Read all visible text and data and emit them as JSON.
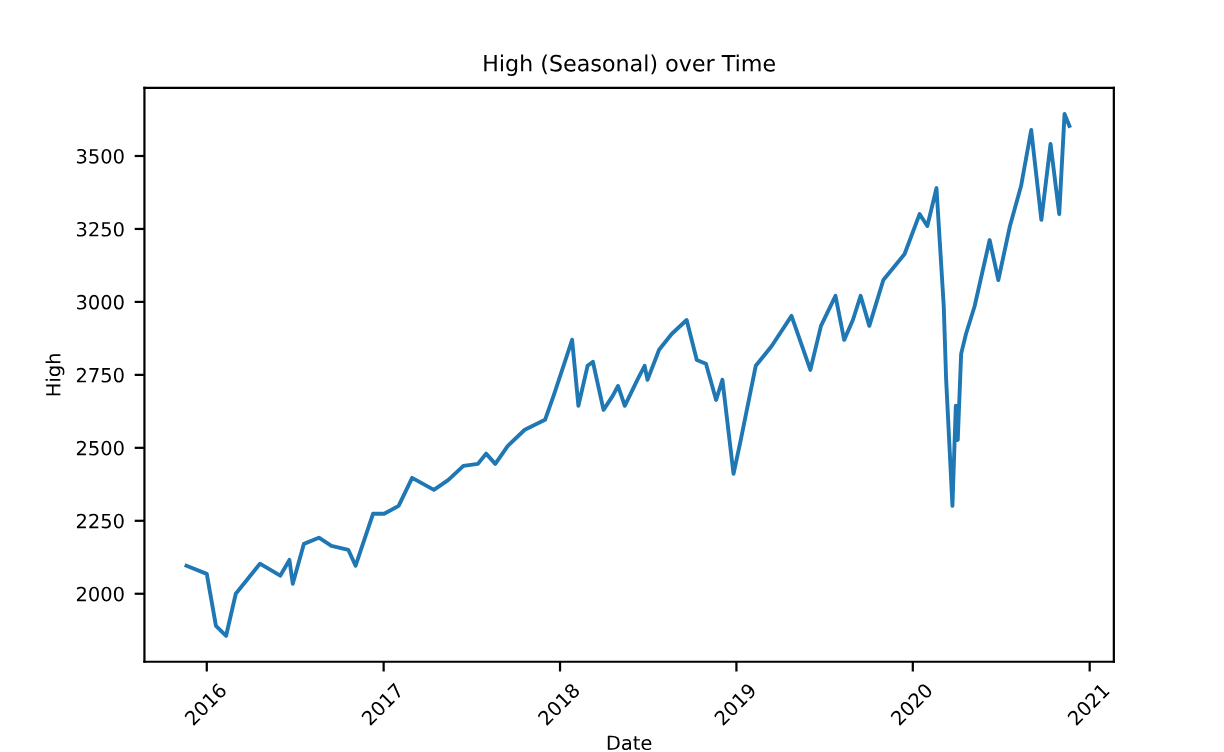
{
  "chart_data": {
    "type": "line",
    "title": "High (Seasonal) over Time",
    "xlabel": "Date",
    "ylabel": "High",
    "x": [
      "2015-11-20",
      "2016-01-01",
      "2016-01-20",
      "2016-02-10",
      "2016-03-01",
      "2016-04-20",
      "2016-06-01",
      "2016-06-20",
      "2016-06-27",
      "2016-07-20",
      "2016-08-20",
      "2016-09-15",
      "2016-10-20",
      "2016-11-04",
      "2016-12-10",
      "2017-01-02",
      "2017-02-01",
      "2017-03-01",
      "2017-04-15",
      "2017-05-15",
      "2017-06-15",
      "2017-07-15",
      "2017-08-01",
      "2017-08-20",
      "2017-09-15",
      "2017-10-20",
      "2017-12-01",
      "2017-12-20",
      "2018-01-26",
      "2018-02-08",
      "2018-02-27",
      "2018-03-10",
      "2018-04-01",
      "2018-04-20",
      "2018-05-01",
      "2018-05-15",
      "2018-06-10",
      "2018-06-25",
      "2018-07-01",
      "2018-07-25",
      "2018-08-20",
      "2018-09-20",
      "2018-10-11",
      "2018-10-30",
      "2018-11-20",
      "2018-12-03",
      "2018-12-26",
      "2019-01-10",
      "2019-02-10",
      "2019-03-15",
      "2019-04-25",
      "2019-06-03",
      "2019-06-25",
      "2019-07-25",
      "2019-08-12",
      "2019-08-30",
      "2019-09-15",
      "2019-10-03",
      "2019-11-01",
      "2019-12-15",
      "2020-01-15",
      "2020-01-31",
      "2020-02-19",
      "2020-03-05",
      "2020-03-10",
      "2020-03-23",
      "2020-03-30",
      "2020-04-03",
      "2020-04-10",
      "2020-04-20",
      "2020-05-08",
      "2020-06-08",
      "2020-06-26",
      "2020-07-20",
      "2020-08-12",
      "2020-09-02",
      "2020-09-23",
      "2020-10-12",
      "2020-10-30",
      "2020-11-10",
      "2020-11-20"
    ],
    "series": [
      {
        "color": "#1f77b4",
        "values": [
          2096,
          2068,
          1890,
          1856,
          2000,
          2103,
          2062,
          2116,
          2034,
          2171,
          2192,
          2164,
          2150,
          2096,
          2274,
          2274,
          2301,
          2397,
          2356,
          2390,
          2438,
          2445,
          2480,
          2445,
          2507,
          2562,
          2596,
          2685,
          2870,
          2644,
          2781,
          2795,
          2630,
          2678,
          2712,
          2644,
          2733,
          2781,
          2733,
          2836,
          2890,
          2938,
          2801,
          2788,
          2664,
          2733,
          2411,
          2527,
          2781,
          2849,
          2952,
          2767,
          2918,
          3021,
          2870,
          2938,
          3021,
          2918,
          3075,
          3164,
          3301,
          3260,
          3390,
          2986,
          2733,
          2301,
          2644,
          2527,
          2822,
          2890,
          2986,
          3212,
          3075,
          3260,
          3397,
          3589,
          3281,
          3541,
          3301,
          3644,
          3603
        ]
      }
    ],
    "xlim": [
      "2015-08-25",
      "2021-02-20"
    ],
    "xticks": [
      {
        "value": "2016-01-01",
        "label": "2016"
      },
      {
        "value": "2017-01-01",
        "label": "2017"
      },
      {
        "value": "2018-01-01",
        "label": "2018"
      },
      {
        "value": "2019-01-01",
        "label": "2019"
      },
      {
        "value": "2020-01-01",
        "label": "2020"
      },
      {
        "value": "2021-01-01",
        "label": "2021"
      }
    ],
    "ylim": [
      1767,
      3733
    ],
    "yticks": [
      2000,
      2250,
      2500,
      2750,
      3000,
      3250,
      3500
    ],
    "grid": false,
    "legend": false,
    "marker": "none",
    "line_style": "solid"
  }
}
